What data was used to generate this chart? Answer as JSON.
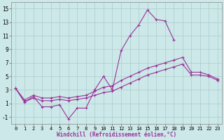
{
  "xlabel": "Windchill (Refroidissement éolien,°C)",
  "x": [
    0,
    1,
    2,
    3,
    4,
    5,
    6,
    7,
    8,
    9,
    10,
    11,
    12,
    13,
    14,
    15,
    16,
    17,
    18,
    19,
    20,
    21,
    22,
    23
  ],
  "line1": [
    3.2,
    1.2,
    2.0,
    0.5,
    0.5,
    0.8,
    -1.3,
    0.3,
    0.3,
    3.0,
    5.0,
    3.0,
    8.8,
    11.0,
    12.6,
    14.8,
    13.4,
    13.2,
    10.4,
    null,
    null,
    null,
    null,
    null
  ],
  "line2": [
    3.2,
    1.5,
    2.2,
    1.8,
    1.8,
    2.0,
    1.8,
    2.0,
    2.2,
    2.8,
    3.4,
    3.6,
    4.4,
    5.0,
    5.6,
    6.2,
    6.6,
    7.0,
    7.4,
    7.8,
    5.6,
    5.6,
    5.2,
    4.6
  ],
  "line3": [
    3.2,
    1.2,
    1.8,
    1.4,
    1.4,
    1.6,
    1.4,
    1.6,
    1.8,
    2.2,
    2.6,
    2.8,
    3.4,
    4.0,
    4.6,
    5.2,
    5.6,
    6.0,
    6.4,
    6.8,
    5.2,
    5.2,
    5.0,
    4.4
  ],
  "line_color": "#993399",
  "bg_color": "#cce8e8",
  "grid_color": "#aacccc",
  "ylim": [
    -2,
    16
  ],
  "yticks": [
    -1,
    1,
    3,
    5,
    7,
    9,
    11,
    13,
    15
  ],
  "xlim": [
    -0.5,
    23.5
  ]
}
